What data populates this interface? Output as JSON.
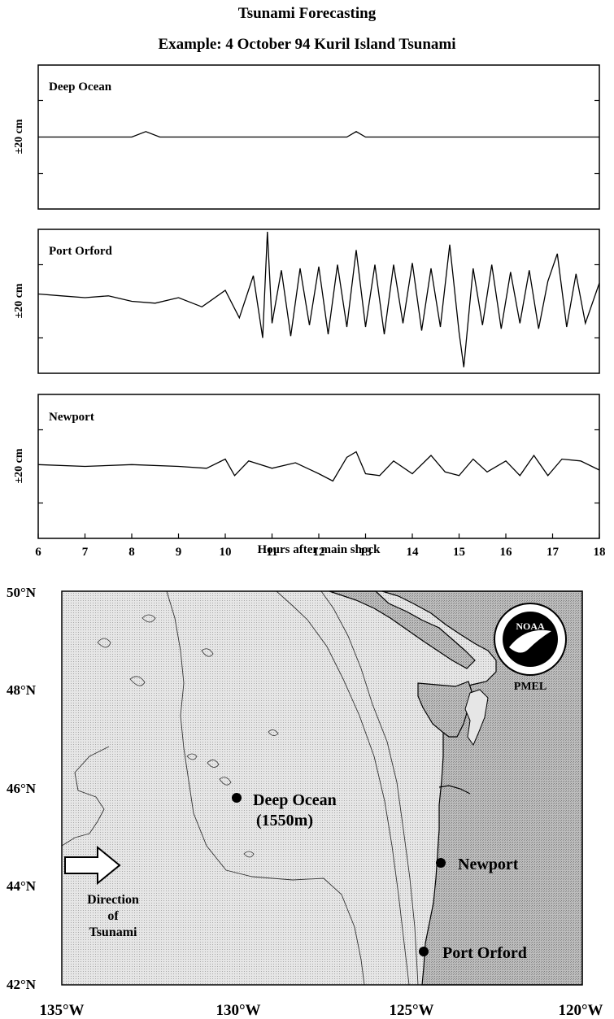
{
  "title": "Tsunami Forecasting",
  "subtitle": "Example:   4 October 94 Kuril Island Tsunami",
  "chart_data": {
    "type": "line",
    "x_label": "Hours after main shock",
    "x_ticks": [
      6,
      7,
      8,
      9,
      10,
      11,
      12,
      13,
      14,
      15,
      16,
      17,
      18
    ],
    "xlim": [
      6,
      18
    ],
    "ylabel": "±20 cm",
    "panels": [
      {
        "name": "Deep Ocean",
        "x": [
          6,
          7,
          8,
          8.3,
          8.6,
          9,
          10,
          11,
          12,
          12.6,
          12.8,
          13,
          14,
          15,
          16,
          17,
          18
        ],
        "values": [
          0,
          0,
          0,
          3,
          0,
          0,
          0,
          0,
          0,
          0,
          3,
          0,
          0,
          0,
          0,
          0,
          0
        ]
      },
      {
        "name": "Port Orford",
        "x": [
          6,
          6.5,
          7,
          7.5,
          8,
          8.5,
          9,
          9.5,
          10,
          10.3,
          10.6,
          10.8,
          10.9,
          11,
          11.2,
          11.4,
          11.6,
          11.8,
          12,
          12.2,
          12.4,
          12.6,
          12.8,
          13,
          13.2,
          13.4,
          13.6,
          13.8,
          14,
          14.2,
          14.4,
          14.6,
          14.8,
          15,
          15.1,
          15.3,
          15.5,
          15.7,
          15.9,
          16.1,
          16.3,
          16.5,
          16.7,
          16.9,
          17.1,
          17.3,
          17.5,
          17.7,
          18
        ],
        "values": [
          4,
          3,
          2,
          3,
          0,
          -1,
          2,
          -3,
          6,
          -9,
          14,
          -20,
          38,
          -12,
          17,
          -19,
          18,
          -13,
          19,
          -18,
          20,
          -14,
          28,
          -14,
          20,
          -18,
          20,
          -12,
          21,
          -16,
          18,
          -14,
          31,
          -17,
          -36,
          18,
          -13,
          20,
          -15,
          16,
          -12,
          17,
          -15,
          11,
          26,
          -14,
          15,
          -12,
          10
        ]
      },
      {
        "name": "Newport",
        "x": [
          6,
          7,
          8,
          9,
          9.6,
          10,
          10.2,
          10.5,
          11,
          11.5,
          12,
          12.3,
          12.6,
          12.8,
          13,
          13.3,
          13.6,
          14,
          14.4,
          14.7,
          15,
          15.3,
          15.6,
          16,
          16.3,
          16.6,
          16.9,
          17.2,
          17.6,
          18
        ],
        "values": [
          1,
          0,
          1,
          0,
          -1,
          4,
          -5,
          3,
          -1,
          2,
          -4,
          -8,
          5,
          8,
          -4,
          -5,
          3,
          -4,
          6,
          -3,
          -5,
          4,
          -3,
          3,
          -5,
          6,
          -5,
          4,
          3,
          -2
        ]
      }
    ]
  },
  "map": {
    "lat_labels": [
      "50°N",
      "48°N",
      "46°N",
      "44°N",
      "42°N"
    ],
    "lon_labels": [
      "135°W",
      "130°W",
      "125°W",
      "120°W"
    ],
    "stations": {
      "deep_name": "Deep Ocean",
      "deep_depth": "(1550m)",
      "newport": "Newport",
      "port_orford": "Port Orford"
    },
    "arrow_label": [
      "Direction",
      "of",
      "Tsunami"
    ],
    "logo_text": "NOAA",
    "logo_caption": "PMEL"
  }
}
